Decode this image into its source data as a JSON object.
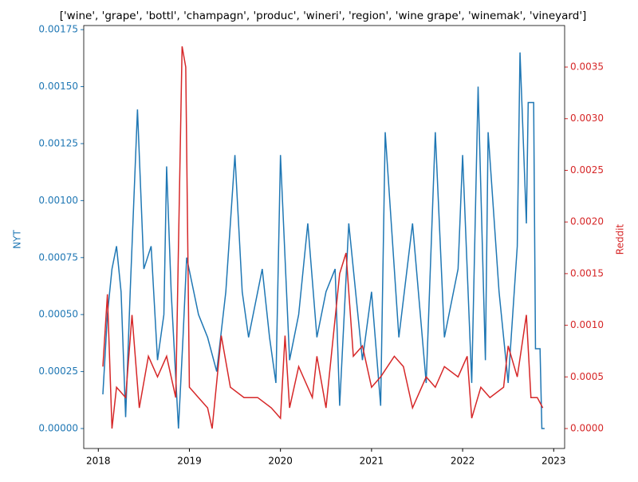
{
  "chart_data": {
    "type": "line",
    "title": "['wine', 'grape', 'bottl', 'champagn', 'produc', 'wineri', 'region', 'wine grape', 'winemak', 'vineyard']",
    "ylabel": "NYT",
    "y2label": "Reddit",
    "xlim": [
      2017.84,
      2023.12
    ],
    "xticks": [
      2018,
      2019,
      2020,
      2021,
      2022,
      2023
    ],
    "ylim": [
      -8.75e-05,
      0.001768
    ],
    "yticks": [
      {
        "value": 0,
        "label": "0.00000"
      },
      {
        "value": 0.00025,
        "label": "0.00025"
      },
      {
        "value": 0.0005,
        "label": "0.00050"
      },
      {
        "value": 0.00075,
        "label": "0.00075"
      },
      {
        "value": 0.001,
        "label": "0.00100"
      },
      {
        "value": 0.00125,
        "label": "0.00125"
      },
      {
        "value": 0.0015,
        "label": "0.00150"
      },
      {
        "value": 0.00175,
        "label": "0.00175"
      }
    ],
    "y2lim": [
      -0.000193,
      0.003902
    ],
    "y2ticks": [
      {
        "value": 0,
        "label": "0.0000"
      },
      {
        "value": 0.0005,
        "label": "0.0005"
      },
      {
        "value": 0.001,
        "label": "0.0010"
      },
      {
        "value": 0.0015,
        "label": "0.0015"
      },
      {
        "value": 0.002,
        "label": "0.0020"
      },
      {
        "value": 0.0025,
        "label": "0.0025"
      },
      {
        "value": 0.003,
        "label": "0.0030"
      },
      {
        "value": 0.0035,
        "label": "0.0035"
      }
    ],
    "series": [
      {
        "name": "NYT",
        "color": "#1f77b4",
        "axis": "y",
        "x": [
          2018.05,
          2018.1,
          2018.15,
          2018.2,
          2018.25,
          2018.3,
          2018.35,
          2018.43,
          2018.5,
          2018.58,
          2018.65,
          2018.72,
          2018.75,
          2018.8,
          2018.88,
          2018.93,
          2018.97,
          2019.1,
          2019.2,
          2019.3,
          2019.4,
          2019.5,
          2019.58,
          2019.65,
          2019.8,
          2019.88,
          2019.95,
          2020.0,
          2020.1,
          2020.2,
          2020.3,
          2020.4,
          2020.5,
          2020.6,
          2020.65,
          2020.75,
          2020.9,
          2021.0,
          2021.1,
          2021.15,
          2021.3,
          2021.45,
          2021.6,
          2021.7,
          2021.8,
          2021.95,
          2022.0,
          2022.1,
          2022.17,
          2022.25,
          2022.28,
          2022.4,
          2022.5,
          2022.6,
          2022.63,
          2022.7,
          2022.72,
          2022.78,
          2022.8,
          2022.85,
          2022.87,
          2022.9
        ],
        "values": [
          0.00015,
          0.0005,
          0.0007,
          0.0008,
          0.0006,
          5e-05,
          0.0006,
          0.0014,
          0.0007,
          0.0008,
          0.0003,
          0.0005,
          0.00115,
          0.0006,
          0.0,
          0.0004,
          0.00075,
          0.0005,
          0.0004,
          0.00025,
          0.0006,
          0.0012,
          0.0006,
          0.0004,
          0.0007,
          0.0004,
          0.0002,
          0.0012,
          0.0003,
          0.0005,
          0.0009,
          0.0004,
          0.0006,
          0.0007,
          0.0001,
          0.0009,
          0.0003,
          0.0006,
          0.0001,
          0.0013,
          0.0004,
          0.0009,
          0.0002,
          0.0013,
          0.0004,
          0.0007,
          0.0012,
          0.0002,
          0.0015,
          0.0003,
          0.0013,
          0.0006,
          0.0002,
          0.0008,
          0.00165,
          0.0009,
          0.00143,
          0.00143,
          0.00035,
          0.00035,
          0.0,
          0.0
        ]
      },
      {
        "name": "Reddit",
        "color": "#d62728",
        "axis": "y2",
        "x": [
          2018.05,
          2018.1,
          2018.15,
          2018.2,
          2018.3,
          2018.37,
          2018.45,
          2018.55,
          2018.65,
          2018.75,
          2018.85,
          2018.92,
          2018.96,
          2019.0,
          2019.1,
          2019.2,
          2019.25,
          2019.35,
          2019.45,
          2019.6,
          2019.75,
          2019.9,
          2020.0,
          2020.05,
          2020.1,
          2020.2,
          2020.35,
          2020.4,
          2020.5,
          2020.65,
          2020.72,
          2020.8,
          2020.9,
          2021.0,
          2021.1,
          2021.25,
          2021.35,
          2021.45,
          2021.6,
          2021.7,
          2021.8,
          2021.95,
          2022.05,
          2022.1,
          2022.2,
          2022.3,
          2022.45,
          2022.5,
          2022.6,
          2022.7,
          2022.75,
          2022.82,
          2022.88
        ],
        "values": [
          0.0006,
          0.0013,
          0.0,
          0.0004,
          0.0003,
          0.0011,
          0.0002,
          0.0007,
          0.0005,
          0.0007,
          0.0003,
          0.0037,
          0.0035,
          0.0004,
          0.0003,
          0.0002,
          0.0,
          0.0009,
          0.0004,
          0.0003,
          0.0003,
          0.0002,
          0.0001,
          0.0009,
          0.0002,
          0.0006,
          0.0003,
          0.0007,
          0.0002,
          0.0015,
          0.0017,
          0.0007,
          0.0008,
          0.0004,
          0.0005,
          0.0007,
          0.0006,
          0.0002,
          0.0005,
          0.0004,
          0.0006,
          0.0005,
          0.0007,
          0.0001,
          0.0004,
          0.0003,
          0.0004,
          0.0008,
          0.0005,
          0.0011,
          0.0003,
          0.0003,
          0.0002
        ]
      }
    ]
  }
}
